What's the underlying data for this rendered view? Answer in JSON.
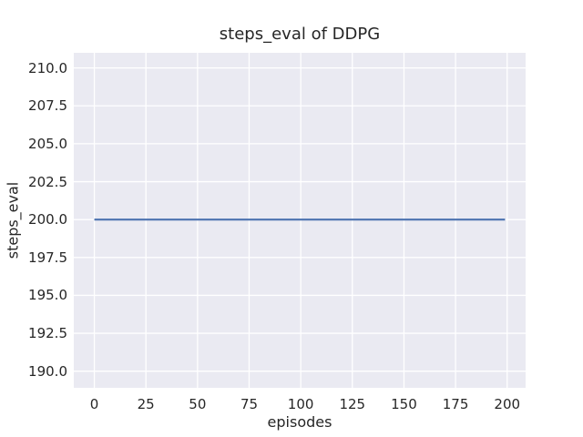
{
  "chart_data": {
    "type": "line",
    "title": "steps_eval of DDPG",
    "xlabel": "episodes",
    "ylabel": "steps_eval",
    "x_ticks": [
      0,
      25,
      50,
      75,
      100,
      125,
      150,
      175,
      200
    ],
    "x_tick_labels": [
      "0",
      "25",
      "50",
      "75",
      "100",
      "125",
      "150",
      "175",
      "200"
    ],
    "y_ticks": [
      190.0,
      192.5,
      195.0,
      197.5,
      200.0,
      202.5,
      205.0,
      207.5,
      210.0
    ],
    "y_tick_labels": [
      "190.0",
      "192.5",
      "195.0",
      "197.5",
      "200.0",
      "202.5",
      "205.0",
      "207.5",
      "210.0"
    ],
    "xlim": [
      -9.95,
      208.95
    ],
    "ylim": [
      188.9,
      211.0
    ],
    "grid": true,
    "legend": "none",
    "series": [
      {
        "name": "steps_eval",
        "x": [
          0,
          199
        ],
        "y": [
          200.0,
          200.0
        ],
        "color": "#4c72b0",
        "line_width": 2.2
      }
    ],
    "styles": {
      "figure_background": "#ffffff",
      "axes_background": "#eaeaf2",
      "grid_color": "#ffffff",
      "text_color": "#262626"
    }
  }
}
